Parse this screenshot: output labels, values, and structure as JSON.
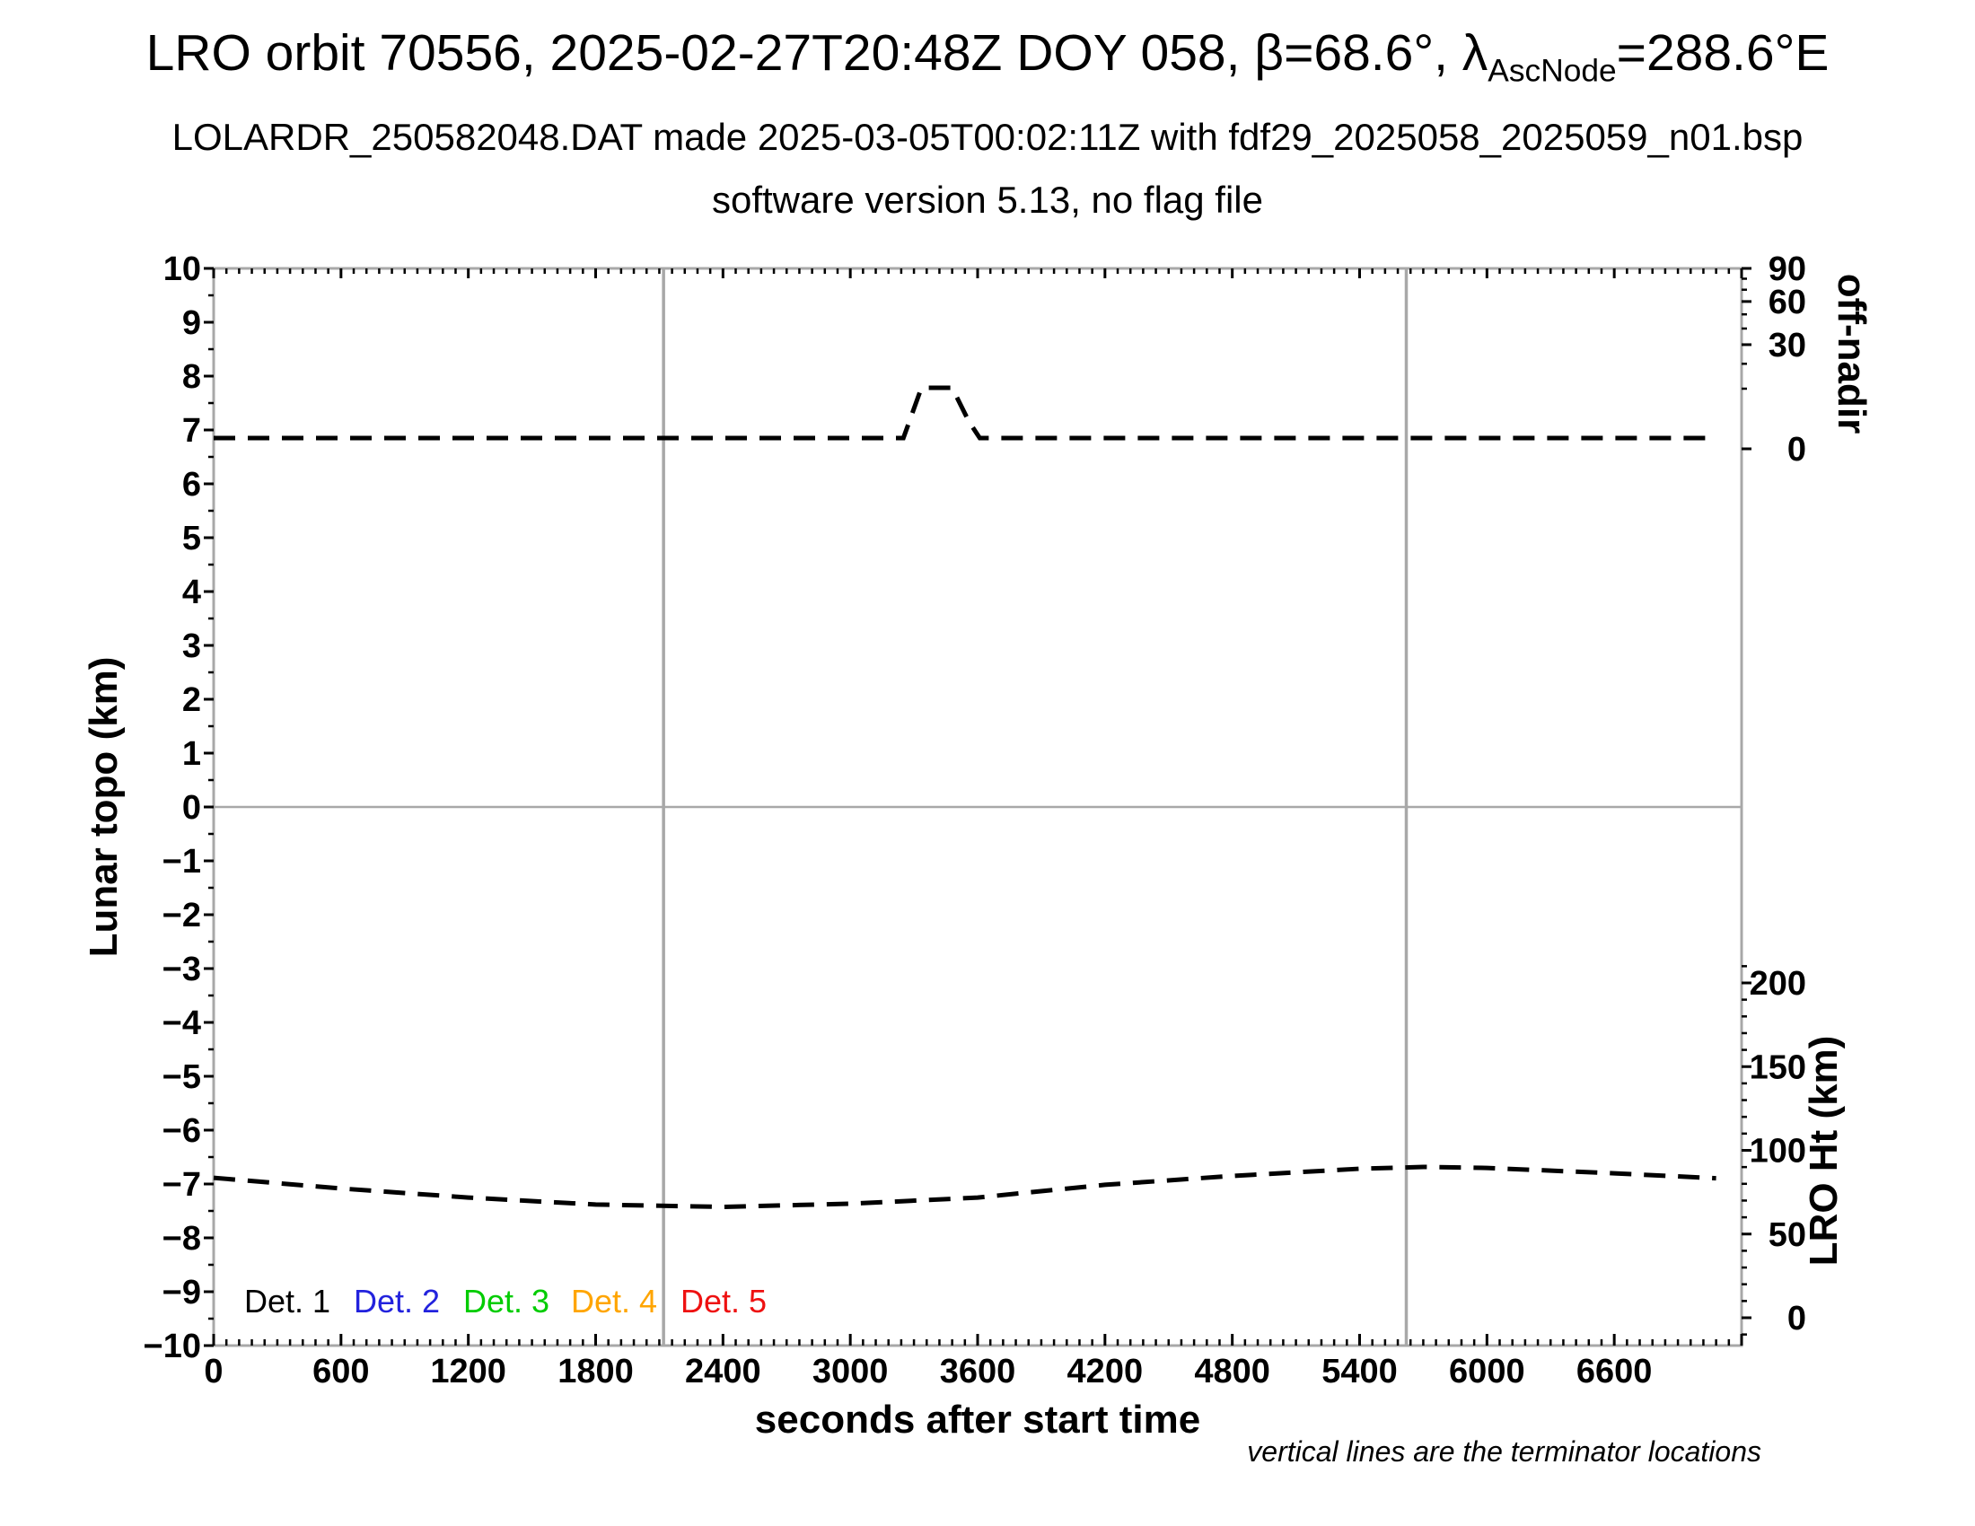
{
  "title": {
    "line1_pre": "LRO orbit 70556, 2025-02-27T20:48Z DOY 058, β=68.6°, λ",
    "line1_sub": "AscNode",
    "line1_post": "=288.6°E",
    "line2": "LOLARDR_250582048.DAT made 2025-03-05T00:02:11Z with fdf29_2025058_2025059_n01.bsp",
    "line3": "software version 5.13, no flag file"
  },
  "footnote": "vertical lines are the terminator locations",
  "chart_data": {
    "type": "line",
    "title": "LRO orbit 70556, 2025-02-27T20:48Z DOY 058, β=68.6°, λAscNode=288.6°E",
    "xlabel": "seconds after start time",
    "x_range_s": [
      0,
      7200
    ],
    "x_major_tick_s": 600,
    "x_minor_tick_s": 60,
    "x_tick_labels": [
      "0",
      "600",
      "1200",
      "1800",
      "2400",
      "3000",
      "3600",
      "4200",
      "4800",
      "5400",
      "6000",
      "6600"
    ],
    "left_axis": {
      "label": "Lunar topo (km)",
      "range": [
        -10,
        10
      ],
      "major": 1,
      "minor": 0.5
    },
    "right_axis_top": {
      "label": "off-nadir",
      "unit": "degrees",
      "scale": "sqrt",
      "labeled_ticks": [
        90,
        60,
        30,
        0
      ],
      "minor_ticks": [
        80,
        70,
        50,
        40,
        20,
        10
      ]
    },
    "right_axis_bottom": {
      "label": "LRO Ht (km)",
      "labeled_ticks": [
        200,
        150,
        100,
        50,
        0
      ],
      "minor_tick_km": 10
    },
    "grid": {
      "zero_line": 0
    },
    "terminator_lines_s": [
      2120,
      5620
    ],
    "series": [
      {
        "name": "off-nadir angle",
        "axis": "right_top",
        "color": "#000000",
        "linestyle": "dashed",
        "points_s_deg": [
          [
            0,
            0.32
          ],
          [
            3250,
            0.32
          ],
          [
            3335,
            10.3
          ],
          [
            3480,
            10.3
          ],
          [
            3560,
            2.0
          ],
          [
            3610,
            0.32
          ],
          [
            7080,
            0.32
          ]
        ]
      },
      {
        "name": "LRO height",
        "axis": "right_bottom",
        "color": "#000000",
        "linestyle": "dashed",
        "points_s_km": [
          [
            0,
            83.6
          ],
          [
            600,
            77.2
          ],
          [
            1200,
            71.8
          ],
          [
            1800,
            67.6
          ],
          [
            2400,
            66.2
          ],
          [
            3000,
            68.1
          ],
          [
            3600,
            71.8
          ],
          [
            4200,
            79.4
          ],
          [
            4800,
            84.7
          ],
          [
            5400,
            89.0
          ],
          [
            5700,
            90.1
          ],
          [
            6000,
            89.5
          ],
          [
            6600,
            86.3
          ],
          [
            7080,
            83.3
          ]
        ]
      }
    ],
    "detectors_note": "Det. 1–5 lunar topography channels listed in legend; no topography returns are plotted",
    "legend": [
      {
        "label": "Det. 1",
        "color": "#000000"
      },
      {
        "label": "Det. 2",
        "color": "#2222dd"
      },
      {
        "label": "Det. 3",
        "color": "#00cc00"
      },
      {
        "label": "Det. 4",
        "color": "#ffa500"
      },
      {
        "label": "Det. 5",
        "color": "#ee1111"
      }
    ]
  }
}
